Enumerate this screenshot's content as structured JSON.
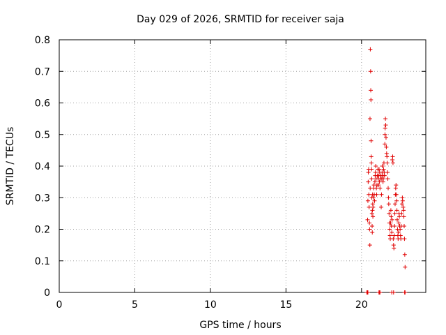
{
  "chart_data": {
    "type": "scatter",
    "title": "Day 029 of 2026, SRMTID for receiver saja",
    "xlabel": "GPS time / hours",
    "ylabel": "SRMTID / TECUs",
    "xlim": [
      0,
      24.25
    ],
    "ylim": [
      0,
      0.8
    ],
    "xticks": [
      0,
      5,
      10,
      15,
      20
    ],
    "xtick_labels": [
      "0",
      "5",
      "10",
      "15",
      "20"
    ],
    "yticks": [
      0,
      0.1,
      0.2,
      0.3,
      0.4,
      0.5,
      0.6,
      0.7,
      0.8
    ],
    "ytick_labels": [
      "0",
      "0.1",
      "0.2",
      "0.3",
      "0.4",
      "0.5",
      "0.6",
      "0.7",
      "0.8"
    ],
    "grid": true,
    "marker": "+",
    "color": "#e00000",
    "series": [
      {
        "name": "SRMTID",
        "points": [
          [
            20.35,
            0.0
          ],
          [
            20.38,
            0.0
          ],
          [
            20.42,
            0.0
          ],
          [
            21.15,
            0.0
          ],
          [
            21.18,
            0.0
          ],
          [
            21.22,
            0.0
          ],
          [
            22.0,
            0.0
          ],
          [
            22.12,
            0.0
          ],
          [
            22.85,
            0.0
          ],
          [
            22.88,
            0.0
          ],
          [
            20.4,
            0.23
          ],
          [
            20.42,
            0.29
          ],
          [
            20.44,
            0.35
          ],
          [
            20.45,
            0.38
          ],
          [
            20.47,
            0.39
          ],
          [
            20.48,
            0.31
          ],
          [
            20.5,
            0.27
          ],
          [
            20.52,
            0.22
          ],
          [
            20.53,
            0.2
          ],
          [
            20.55,
            0.15
          ],
          [
            20.56,
            0.55
          ],
          [
            20.57,
            0.33
          ],
          [
            20.58,
            0.77
          ],
          [
            20.6,
            0.7
          ],
          [
            20.61,
            0.64
          ],
          [
            20.62,
            0.61
          ],
          [
            20.63,
            0.48
          ],
          [
            20.64,
            0.43
          ],
          [
            20.65,
            0.41
          ],
          [
            20.66,
            0.39
          ],
          [
            20.67,
            0.36
          ],
          [
            20.68,
            0.3
          ],
          [
            20.69,
            0.25
          ],
          [
            20.7,
            0.21
          ],
          [
            20.71,
            0.19
          ],
          [
            20.72,
            0.26
          ],
          [
            20.73,
            0.31
          ],
          [
            20.74,
            0.28
          ],
          [
            20.75,
            0.24
          ],
          [
            20.76,
            0.27
          ],
          [
            20.78,
            0.3
          ],
          [
            20.8,
            0.33
          ],
          [
            20.82,
            0.34
          ],
          [
            20.84,
            0.31
          ],
          [
            20.86,
            0.29
          ],
          [
            20.88,
            0.35
          ],
          [
            20.9,
            0.37
          ],
          [
            20.92,
            0.38
          ],
          [
            20.94,
            0.4
          ],
          [
            20.96,
            0.36
          ],
          [
            20.98,
            0.33
          ],
          [
            21.0,
            0.31
          ],
          [
            21.02,
            0.34
          ],
          [
            21.05,
            0.37
          ],
          [
            21.08,
            0.39
          ],
          [
            21.1,
            0.36
          ],
          [
            21.12,
            0.34
          ],
          [
            21.14,
            0.37
          ],
          [
            21.16,
            0.39
          ],
          [
            21.18,
            0.35
          ],
          [
            21.2,
            0.38
          ],
          [
            21.22,
            0.33
          ],
          [
            21.25,
            0.36
          ],
          [
            21.28,
            0.37
          ],
          [
            21.3,
            0.27
          ],
          [
            21.32,
            0.31
          ],
          [
            21.34,
            0.36
          ],
          [
            21.36,
            0.38
          ],
          [
            21.38,
            0.4
          ],
          [
            21.4,
            0.37
          ],
          [
            21.42,
            0.35
          ],
          [
            21.44,
            0.36
          ],
          [
            21.46,
            0.39
          ],
          [
            21.48,
            0.41
          ],
          [
            21.5,
            0.38
          ],
          [
            21.52,
            0.37
          ],
          [
            21.54,
            0.47
          ],
          [
            21.55,
            0.5
          ],
          [
            21.56,
            0.52
          ],
          [
            21.58,
            0.55
          ],
          [
            21.6,
            0.53
          ],
          [
            21.62,
            0.49
          ],
          [
            21.64,
            0.46
          ],
          [
            21.66,
            0.44
          ],
          [
            21.68,
            0.43
          ],
          [
            21.7,
            0.41
          ],
          [
            21.72,
            0.38
          ],
          [
            21.74,
            0.36
          ],
          [
            21.76,
            0.33
          ],
          [
            21.78,
            0.3
          ],
          [
            21.8,
            0.28
          ],
          [
            21.82,
            0.25
          ],
          [
            21.84,
            0.22
          ],
          [
            21.86,
            0.2
          ],
          [
            21.88,
            0.18
          ],
          [
            21.9,
            0.17
          ],
          [
            21.92,
            0.22
          ],
          [
            21.94,
            0.26
          ],
          [
            21.96,
            0.24
          ],
          [
            21.98,
            0.21
          ],
          [
            22.0,
            0.19
          ],
          [
            22.02,
            0.23
          ],
          [
            22.04,
            0.42
          ],
          [
            22.06,
            0.43
          ],
          [
            22.08,
            0.41
          ],
          [
            22.1,
            0.17
          ],
          [
            22.12,
            0.15
          ],
          [
            22.14,
            0.14
          ],
          [
            22.16,
            0.18
          ],
          [
            22.18,
            0.21
          ],
          [
            22.2,
            0.25
          ],
          [
            22.22,
            0.28
          ],
          [
            22.24,
            0.31
          ],
          [
            22.26,
            0.33
          ],
          [
            22.28,
            0.34
          ],
          [
            22.3,
            0.31
          ],
          [
            22.32,
            0.29
          ],
          [
            22.34,
            0.26
          ],
          [
            22.36,
            0.23
          ],
          [
            22.38,
            0.2
          ],
          [
            22.4,
            0.18
          ],
          [
            22.42,
            0.17
          ],
          [
            22.44,
            0.19
          ],
          [
            22.46,
            0.22
          ],
          [
            22.48,
            0.25
          ],
          [
            22.5,
            0.24
          ],
          [
            22.52,
            0.21
          ],
          [
            22.55,
            0.2
          ],
          [
            22.58,
            0.18
          ],
          [
            22.6,
            0.17
          ],
          [
            22.62,
            0.21
          ],
          [
            22.65,
            0.25
          ],
          [
            22.68,
            0.28
          ],
          [
            22.7,
            0.3
          ],
          [
            22.72,
            0.29
          ],
          [
            22.75,
            0.27
          ],
          [
            22.78,
            0.26
          ],
          [
            22.8,
            0.24
          ],
          [
            22.82,
            0.21
          ],
          [
            22.84,
            0.17
          ],
          [
            22.86,
            0.12
          ],
          [
            22.88,
            0.08
          ]
        ]
      }
    ]
  }
}
